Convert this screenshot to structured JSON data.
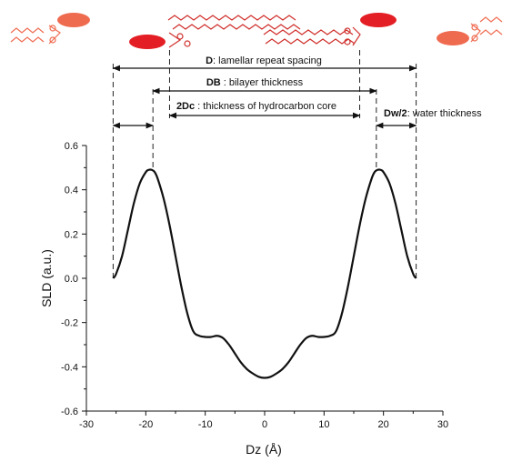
{
  "colors": {
    "curve": "#111111",
    "lipid_headgroup_bright": "#e31e24",
    "lipid_headgroup_faint": "#ef6b50",
    "lipid_tail": "#c0392b"
  },
  "annotations": [
    {
      "id": "D",
      "symbol": "D",
      "text": ": lamellar repeat spacing",
      "from": -25.5,
      "to": 25.5,
      "arrow": "both"
    },
    {
      "id": "DB",
      "symbol": "DB",
      "text": " : bilayer thickness",
      "from": -18.8,
      "to": 18.8,
      "arrow": "both"
    },
    {
      "id": "2Dc",
      "symbol": "2Dc",
      "text": " : thickness of hydrocarbon core",
      "from": -16.0,
      "to": 16.0,
      "arrow": "both"
    },
    {
      "id": "Dw2",
      "symbol": "Dw/2",
      "text": ": water thickness",
      "from": 18.8,
      "to": 25.5,
      "arrow": "both"
    },
    {
      "id": "Dw2_left",
      "symbol": "",
      "text": "",
      "from": -25.5,
      "to": -18.8,
      "arrow": "both"
    }
  ],
  "chart_data": {
    "type": "line",
    "title": "",
    "xlabel": "Dz (Å)",
    "ylabel": "SLD (a.u.)",
    "xlim": [
      -30,
      30
    ],
    "ylim": [
      -0.6,
      0.6
    ],
    "xticks": [
      -30,
      -20,
      -10,
      0,
      10,
      20,
      30
    ],
    "yticks": [
      -0.6,
      -0.4,
      -0.2,
      0.0,
      0.2,
      0.4,
      0.6
    ],
    "ytick_labels": [
      "-0.6",
      "-0.4",
      "-0.2",
      "0.0",
      "0.2",
      "0.4",
      "0.6"
    ],
    "grid": false,
    "legend": "none",
    "series": [
      {
        "x": [
          -25.5,
          -25,
          -24,
          -23,
          -22,
          -21,
          -20,
          -19.5,
          -19,
          -18.5,
          -18,
          -17,
          -16,
          -15,
          -14,
          -13,
          -12,
          -11,
          -10,
          -9,
          -8,
          -7,
          -6,
          -5,
          -4,
          -3,
          -2,
          -1,
          0,
          1,
          2,
          3,
          4,
          5,
          6,
          7,
          8,
          9,
          10,
          11,
          12,
          13,
          14,
          15,
          16,
          17,
          18,
          18.5,
          19,
          19.5,
          20,
          21,
          22,
          23,
          24,
          25,
          25.5
        ],
        "y": [
          0.0,
          0.02,
          0.1,
          0.22,
          0.34,
          0.43,
          0.48,
          0.49,
          0.49,
          0.48,
          0.45,
          0.36,
          0.24,
          0.1,
          -0.04,
          -0.16,
          -0.24,
          -0.26,
          -0.265,
          -0.265,
          -0.26,
          -0.27,
          -0.3,
          -0.34,
          -0.38,
          -0.41,
          -0.43,
          -0.445,
          -0.45,
          -0.445,
          -0.43,
          -0.41,
          -0.38,
          -0.34,
          -0.3,
          -0.27,
          -0.26,
          -0.265,
          -0.265,
          -0.26,
          -0.24,
          -0.16,
          -0.04,
          0.1,
          0.24,
          0.36,
          0.45,
          0.48,
          0.49,
          0.49,
          0.48,
          0.43,
          0.34,
          0.22,
          0.1,
          0.02,
          0.0
        ]
      }
    ]
  }
}
